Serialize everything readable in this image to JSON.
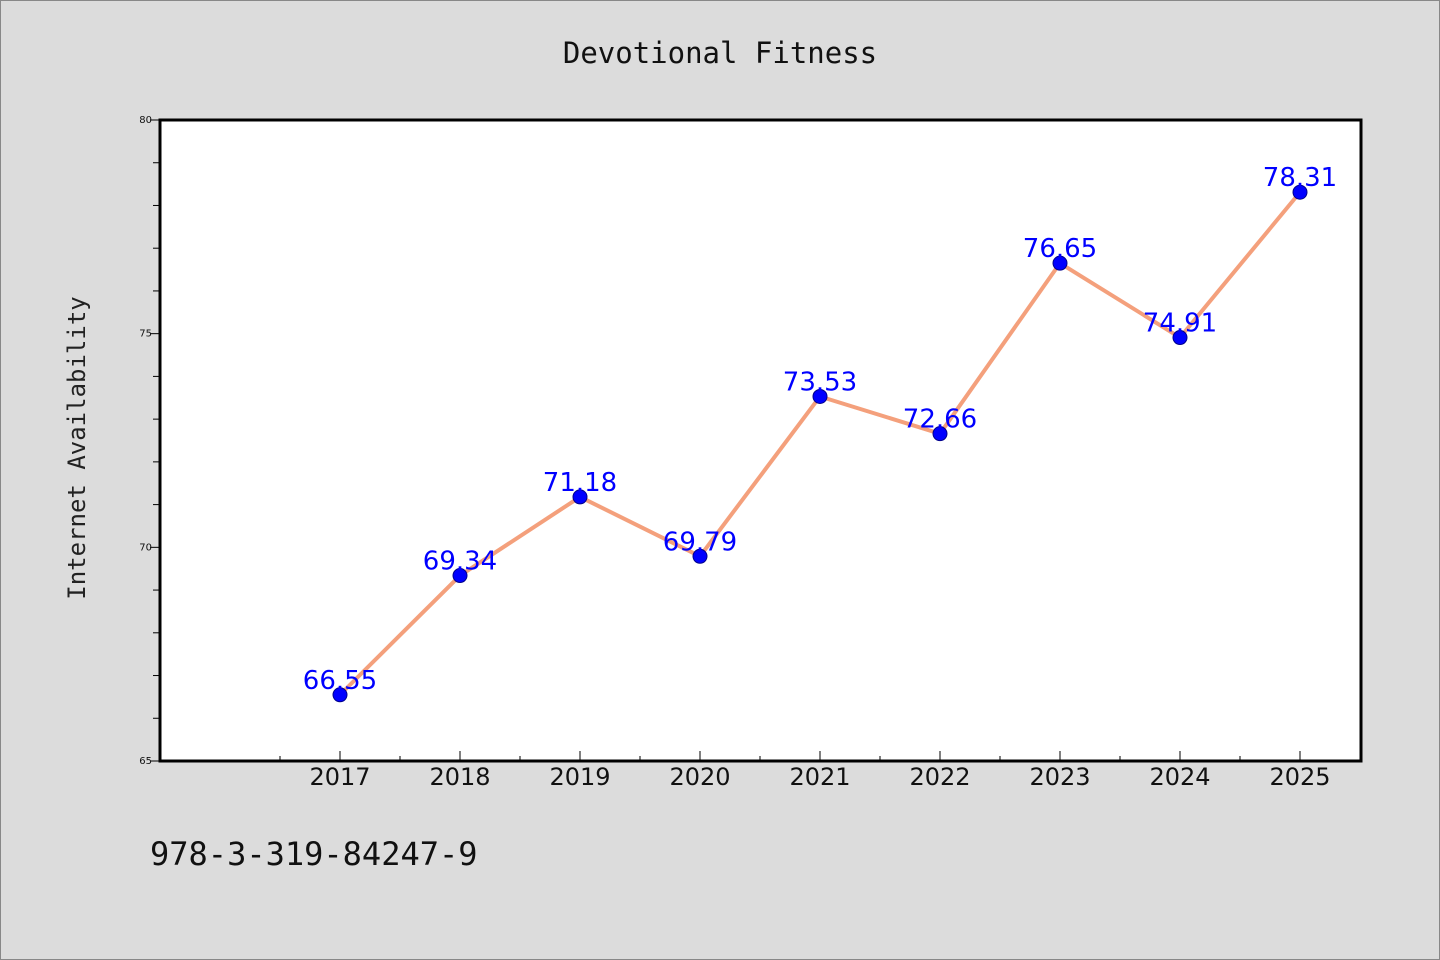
{
  "chart_data": {
    "type": "line",
    "title": "Devotional Fitness",
    "xlabel": "",
    "ylabel": "Internet Availability",
    "categories": [
      "2017",
      "2018",
      "2019",
      "2020",
      "2021",
      "2022",
      "2023",
      "2024",
      "2025"
    ],
    "series": [
      {
        "values": [
          66.55,
          69.34,
          71.18,
          69.79,
          73.53,
          72.66,
          76.65,
          74.91,
          78.31
        ],
        "data_labels": [
          "66.55",
          "69.34",
          "71.18",
          "69.79",
          "73.53",
          "72.66",
          "76.65",
          "74.91",
          "78.31"
        ]
      }
    ],
    "ylim": [
      65,
      80
    ],
    "y_major_ticks": [
      "65",
      "70",
      "75",
      "80"
    ],
    "grid": false,
    "legend": "none",
    "colors": {
      "line": "#f4a07c",
      "marker_fill": "#0000ff",
      "marker_edge": "#00008b",
      "data_label": "#0000ff",
      "background": "#dcdcdc",
      "plot_background": "#ffffff"
    }
  },
  "footer": {
    "text": "978-3-319-84247-9"
  }
}
